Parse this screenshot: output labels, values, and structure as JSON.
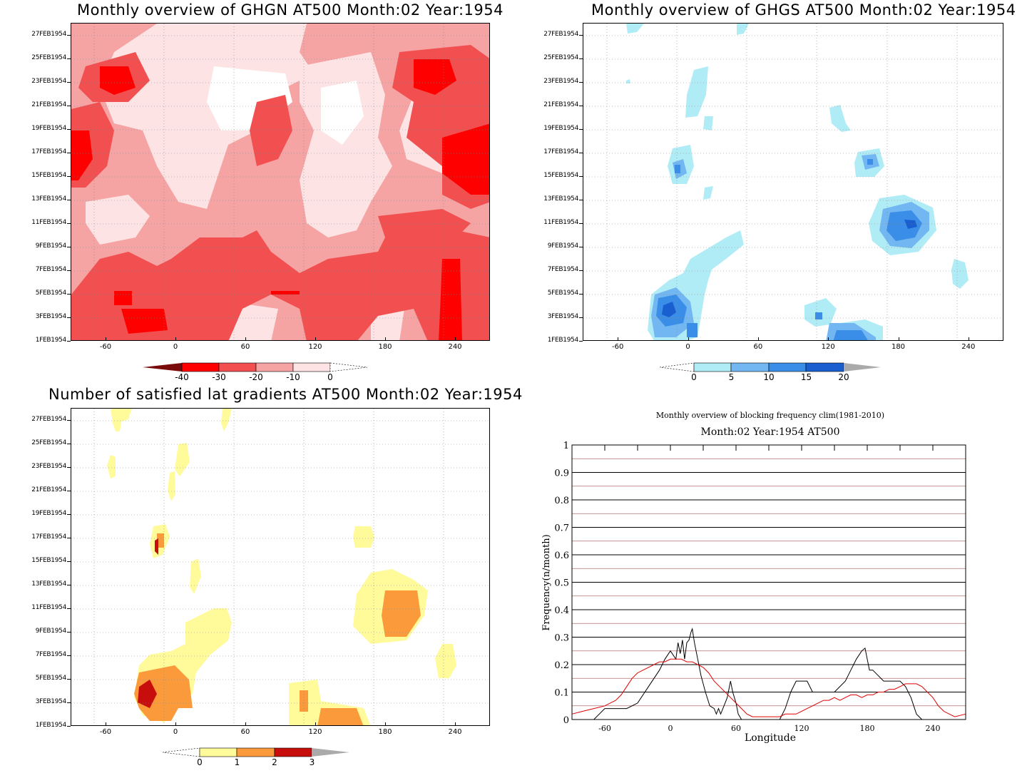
{
  "chart_data": [
    {
      "type": "heatmap",
      "title": "Monthly overview of GHGN AT500 Month:02 Year:1954",
      "ylabels": [
        "27FEB1954",
        "25FEB1954",
        "23FEB1954",
        "21FEB1954",
        "19FEB1954",
        "17FEB1954",
        "15FEB1954",
        "13FEB1954",
        "11FEB1954",
        "9FEB1954",
        "7FEB1954",
        "5FEB1954",
        "3FEB1954",
        "1FEB1954"
      ],
      "xlabels": [
        "-60",
        "0",
        "60",
        "120",
        "180",
        "240"
      ],
      "xlim": [
        -90,
        270
      ],
      "colorbar": {
        "labels": [
          "-40",
          "-30",
          "-20",
          "-10",
          "0"
        ],
        "colors": [
          "#7a0b0b",
          "#ff0000",
          "#f25050",
          "#f5a3a3",
          "#fde3e3",
          "#ffffff"
        ]
      }
    },
    {
      "type": "heatmap",
      "title": "Monthly overview of GHGS AT500 Month:02 Year:1954",
      "ylabels": [
        "27FEB1954",
        "25FEB1954",
        "23FEB1954",
        "21FEB1954",
        "19FEB1954",
        "17FEB1954",
        "15FEB1954",
        "13FEB1954",
        "11FEB1954",
        "9FEB1954",
        "7FEB1954",
        "5FEB1954",
        "3FEB1954",
        "1FEB1954"
      ],
      "xlabels": [
        "-60",
        "0",
        "60",
        "120",
        "180",
        "240"
      ],
      "xlim": [
        -90,
        270
      ],
      "colorbar": {
        "labels": [
          "0",
          "5",
          "10",
          "15",
          "20"
        ],
        "colors": [
          "#ffffff",
          "#b0ecf6",
          "#72b6f2",
          "#3b8ee8",
          "#1a5fd0",
          "#aaaaaa"
        ]
      }
    },
    {
      "type": "heatmap",
      "title": "Number of satisfied lat gradients AT500 Month:02 Year:1954",
      "ylabels": [
        "27FEB1954",
        "25FEB1954",
        "23FEB1954",
        "21FEB1954",
        "19FEB1954",
        "17FEB1954",
        "15FEB1954",
        "13FEB1954",
        "11FEB1954",
        "9FEB1954",
        "7FEB1954",
        "5FEB1954",
        "3FEB1954",
        "1FEB1954"
      ],
      "xlabels": [
        "-60",
        "0",
        "60",
        "120",
        "180",
        "240"
      ],
      "xlim": [
        -90,
        270
      ],
      "colorbar": {
        "labels": [
          "0",
          "1",
          "2",
          "3"
        ],
        "colors": [
          "#ffffff",
          "#fffa9a",
          "#fa9a3a",
          "#c80d0d",
          "#aaaaaa"
        ]
      }
    },
    {
      "type": "line",
      "title": "Monthly overview of blocking frequency clim(1981-2010)",
      "subtitle": "Month:02 Year:1954  AT500",
      "xlabel": "Longitude",
      "ylabel": "Frequency(n/month)",
      "xlim": [
        -90,
        270
      ],
      "ylim": [
        0,
        1
      ],
      "xticks": [
        "-60",
        "0",
        "60",
        "120",
        "180",
        "240"
      ],
      "yticks": [
        "0",
        "0.1",
        "0.2",
        "0.3",
        "0.4",
        "0.5",
        "0.6",
        "0.7",
        "0.8",
        "0.9",
        "1"
      ],
      "series": [
        {
          "color": "#000000",
          "x": [
            -90,
            -70,
            -65,
            -60,
            -50,
            -40,
            -30,
            -20,
            -10,
            -5,
            0,
            5,
            7,
            9,
            11,
            13,
            15,
            17,
            19,
            20,
            22,
            25,
            28,
            32,
            36,
            40,
            42,
            44,
            46,
            48,
            50,
            52,
            55,
            57,
            60,
            62,
            65,
            70,
            80,
            90,
            100,
            105,
            110,
            115,
            125,
            130,
            135,
            140,
            150,
            160,
            165,
            170,
            175,
            178,
            180,
            182,
            185,
            195,
            200,
            205,
            210,
            215,
            220,
            225,
            230,
            235,
            240,
            250,
            260,
            270
          ],
          "y": [
            0,
            0,
            0.02,
            0.04,
            0.04,
            0.04,
            0.06,
            0.12,
            0.18,
            0.22,
            0.25,
            0.22,
            0.28,
            0.24,
            0.29,
            0.22,
            0.28,
            0.29,
            0.32,
            0.33,
            0.28,
            0.22,
            0.16,
            0.1,
            0.05,
            0.04,
            0.02,
            0.04,
            0.02,
            0.04,
            0.06,
            0.08,
            0.14,
            0.1,
            0.06,
            0.02,
            0,
            0,
            0,
            0,
            0,
            0.04,
            0.1,
            0.14,
            0.14,
            0.1,
            0.1,
            0.1,
            0.1,
            0.14,
            0.18,
            0.22,
            0.25,
            0.26,
            0.22,
            0.18,
            0.18,
            0.14,
            0.14,
            0.14,
            0.14,
            0.12,
            0.08,
            0.02,
            0,
            0,
            0,
            0,
            0,
            0
          ]
        },
        {
          "color": "#e00000",
          "x": [
            -90,
            -80,
            -70,
            -60,
            -55,
            -50,
            -45,
            -40,
            -35,
            -30,
            -25,
            -20,
            -15,
            -10,
            -5,
            0,
            5,
            10,
            15,
            20,
            25,
            30,
            35,
            40,
            45,
            50,
            55,
            60,
            65,
            70,
            75,
            80,
            90,
            100,
            105,
            110,
            115,
            120,
            125,
            130,
            135,
            140,
            145,
            150,
            155,
            160,
            165,
            170,
            175,
            180,
            185,
            190,
            195,
            200,
            205,
            210,
            215,
            220,
            225,
            230,
            235,
            240,
            245,
            250,
            255,
            260,
            270
          ],
          "y": [
            0.02,
            0.03,
            0.04,
            0.05,
            0.06,
            0.07,
            0.09,
            0.12,
            0.15,
            0.17,
            0.18,
            0.19,
            0.2,
            0.21,
            0.21,
            0.22,
            0.22,
            0.22,
            0.21,
            0.21,
            0.2,
            0.19,
            0.17,
            0.14,
            0.12,
            0.1,
            0.08,
            0.06,
            0.04,
            0.02,
            0.01,
            0.01,
            0.01,
            0.01,
            0.02,
            0.02,
            0.02,
            0.03,
            0.04,
            0.05,
            0.06,
            0.07,
            0.07,
            0.08,
            0.07,
            0.08,
            0.09,
            0.09,
            0.08,
            0.09,
            0.09,
            0.1,
            0.1,
            0.11,
            0.11,
            0.12,
            0.13,
            0.13,
            0.13,
            0.12,
            0.1,
            0.08,
            0.05,
            0.03,
            0.02,
            0.01,
            0.02
          ]
        }
      ]
    }
  ]
}
